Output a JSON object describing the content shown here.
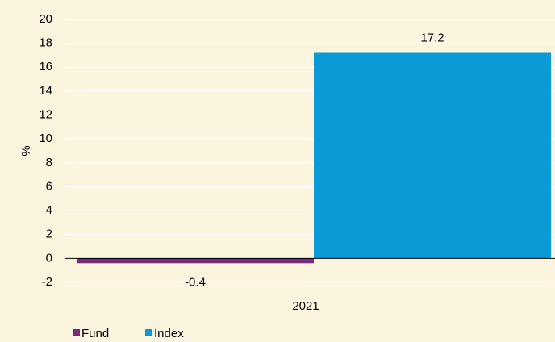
{
  "chart_data": {
    "type": "bar",
    "categories": [
      "2021"
    ],
    "ylabel": "%",
    "series": [
      {
        "name": "Fund",
        "color": "#7b2a7e",
        "values": [
          -0.4
        ]
      },
      {
        "name": "Index",
        "color": "#0a9bd6",
        "values": [
          17.2
        ]
      }
    ],
    "ylim": [
      -2,
      20
    ],
    "yticks": [
      -2,
      0,
      2,
      4,
      6,
      8,
      10,
      12,
      14,
      16,
      18,
      20
    ],
    "grid": true,
    "legend": "bottom-left"
  }
}
